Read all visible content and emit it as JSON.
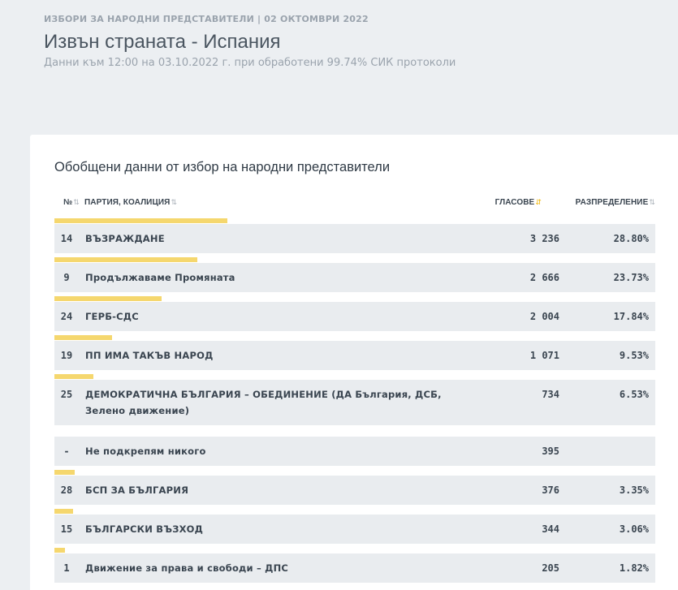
{
  "header": {
    "supertitle": "ИЗБОРИ ЗА НАРОДНИ ПРЕДСТАВИТЕЛИ | 02 ОКТОМВРИ 2022",
    "title": "Извън страната - Испания",
    "subtitle": "Данни към 12:00 на 03.10.2022 г. при обработени 99.74% СИК протоколи"
  },
  "card": {
    "title": "Обобщени данни от избор на народни представители",
    "columns": {
      "no": "№",
      "party": "ПАРТИЯ, КОАЛИЦИЯ",
      "votes": "ГЛАСОВЕ",
      "share": "РАЗПРЕДЕЛЕНИЕ"
    },
    "bar_color": "#f5d76e",
    "rows": [
      {
        "no": "14",
        "name": "ВЪЗРАЖДАНЕ",
        "votes": "3 236",
        "share": "28.80%",
        "pct": 28.8
      },
      {
        "no": "9",
        "name": "Продължаваме Промяната",
        "votes": "2 666",
        "share": "23.73%",
        "pct": 23.73
      },
      {
        "no": "24",
        "name": "ГЕРБ-СДС",
        "votes": "2 004",
        "share": "17.84%",
        "pct": 17.84
      },
      {
        "no": "19",
        "name": "ПП ИМА ТАКЪВ НАРОД",
        "votes": "1 071",
        "share": "9.53%",
        "pct": 9.53
      },
      {
        "no": "25",
        "name": "ДЕМОКРАТИЧНА БЪЛГАРИЯ – ОБЕДИНЕНИЕ (ДА България, ДСБ, Зелено движение)",
        "votes": "734",
        "share": "6.53%",
        "pct": 6.53
      },
      {
        "no": "-",
        "name": "Не подкрепям никого",
        "votes": "395",
        "share": "",
        "pct": 0
      },
      {
        "no": "28",
        "name": "БСП ЗА БЪЛГАРИЯ",
        "votes": "376",
        "share": "3.35%",
        "pct": 3.35
      },
      {
        "no": "15",
        "name": "БЪЛГАРСКИ ВЪЗХОД",
        "votes": "344",
        "share": "3.06%",
        "pct": 3.06
      },
      {
        "no": "1",
        "name": "Движение за права и свободи – ДПС",
        "votes": "205",
        "share": "1.82%",
        "pct": 1.82
      }
    ]
  }
}
